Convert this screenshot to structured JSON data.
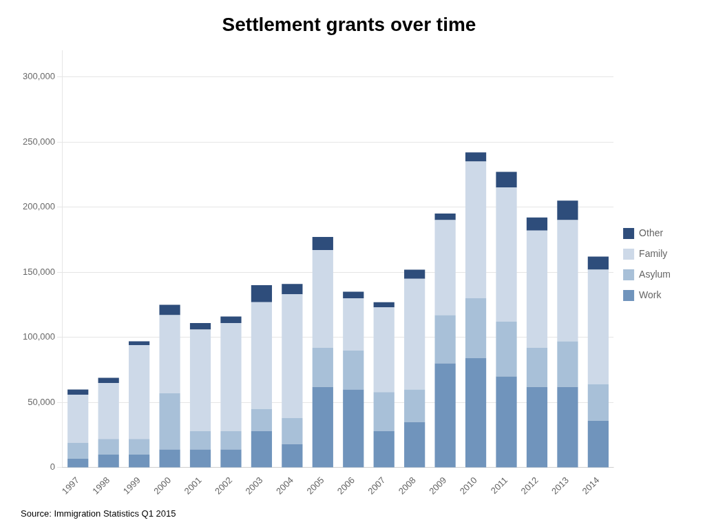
{
  "chart_data": {
    "type": "bar",
    "title": "Settlement grants over time",
    "annotations": [
      "Source: Immigration Statistics Q1 2015"
    ],
    "categories": [
      "1997",
      "1998",
      "1999",
      "2000",
      "2001",
      "2002",
      "2003",
      "2004",
      "2005",
      "2006",
      "2007",
      "2008",
      "2009",
      "2010",
      "2011",
      "2012",
      "2013",
      "2014"
    ],
    "series": [
      {
        "name": "Work",
        "color": "#7094bc",
        "values": [
          7000,
          10000,
          10000,
          14000,
          14000,
          14000,
          28000,
          18000,
          62000,
          60000,
          28000,
          35000,
          80000,
          84000,
          70000,
          62000,
          62000,
          36000
        ]
      },
      {
        "name": "Asylum",
        "color": "#a8c0d8",
        "values": [
          12000,
          12000,
          12000,
          43000,
          14000,
          14000,
          17000,
          20000,
          30000,
          30000,
          30000,
          25000,
          37000,
          46000,
          42000,
          30000,
          35000,
          28000
        ]
      },
      {
        "name": "Family",
        "color": "#cdd9e8",
        "values": [
          37000,
          43000,
          72000,
          60000,
          78000,
          83000,
          82000,
          95000,
          75000,
          40000,
          65000,
          85000,
          73000,
          105000,
          103000,
          90000,
          93000,
          88000
        ]
      },
      {
        "name": "Other",
        "color": "#2e4d7b",
        "values": [
          4000,
          4000,
          3000,
          8000,
          5000,
          5000,
          13000,
          8000,
          10000,
          5000,
          4000,
          7000,
          5000,
          7000,
          12000,
          10000,
          15000,
          10000
        ]
      }
    ],
    "stacked": true,
    "ylim": [
      0,
      320000
    ],
    "yticks": [
      0,
      {
        "value": 50000,
        "label": "50,000"
      },
      {
        "value": 100000,
        "label": "100,000"
      },
      {
        "value": 150000,
        "label": "150,000"
      },
      {
        "value": 200000,
        "label": "200,000"
      },
      {
        "value": 250000,
        "label": "250,000"
      },
      {
        "value": 300000,
        "label": "300,000"
      }
    ],
    "grid": true,
    "legend": "right"
  }
}
